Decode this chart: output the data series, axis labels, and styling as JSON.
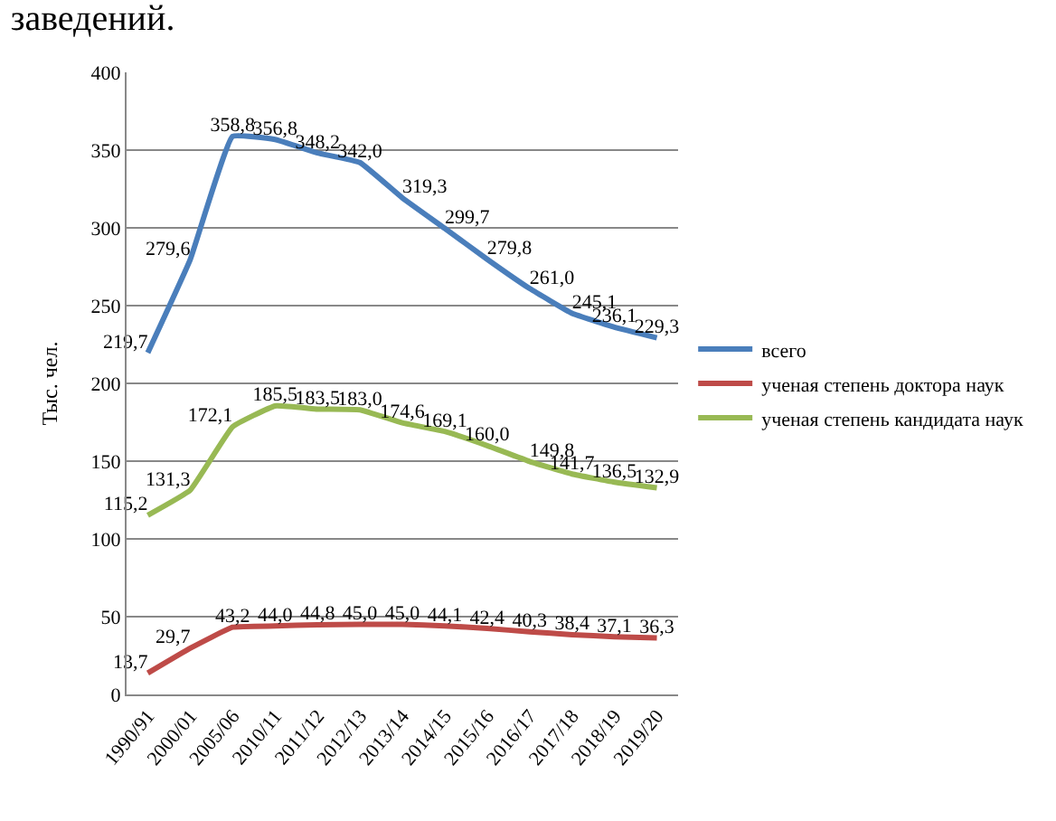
{
  "chart_data": {
    "type": "line",
    "title": "заведений.",
    "ylabel": "Тыс. чел.",
    "categories": [
      "1990/91",
      "2000/01",
      "2005/06",
      "2010/11",
      "2011/12",
      "2012/13",
      "2013/14",
      "2014/15",
      "2015/16",
      "2016/17",
      "2017/18",
      "2018/19",
      "2019/20"
    ],
    "series": [
      {
        "name": "всего",
        "color": "#4a7ebb",
        "values": [
          219.7,
          279.6,
          358.8,
          356.8,
          348.2,
          342.0,
          319.3,
          299.7,
          279.8,
          261.0,
          245.1,
          236.1,
          229.3
        ],
        "value_labels": [
          "219,7",
          "279,6",
          "358,8",
          "356,8",
          "348,2",
          "342,0",
          "319,3",
          "299,7",
          "279,8",
          "261,0",
          "245,1",
          "236,1",
          "229,3"
        ]
      },
      {
        "name": "ученая степень доктора наук",
        "color": "#be4b48",
        "values": [
          13.7,
          29.7,
          43.2,
          44.0,
          44.8,
          45.0,
          45.0,
          44.1,
          42.4,
          40.3,
          38.4,
          37.1,
          36.3
        ],
        "value_labels": [
          "13,7",
          "29,7",
          "43,2",
          "44,0",
          "44,8",
          "45,0",
          "45,0",
          "44,1",
          "42,4",
          "40,3",
          "38,4",
          "37,1",
          "36,3"
        ]
      },
      {
        "name": "ученая степень кандидата наук",
        "color": "#98b954",
        "values": [
          115.2,
          131.3,
          172.1,
          185.5,
          183.5,
          183.0,
          174.6,
          169.1,
          160.0,
          149.8,
          141.7,
          136.5,
          132.9
        ],
        "value_labels": [
          "115,2",
          "131,3",
          "172,1",
          "185,5",
          "183,5",
          "183,0",
          "174,6",
          "169,1",
          "160,0",
          "149,8",
          "141,7",
          "136,5",
          "132,9"
        ]
      }
    ],
    "ylim": [
      0,
      400
    ],
    "yticks": [
      0,
      50,
      100,
      150,
      200,
      250,
      300,
      350,
      400
    ],
    "grid": "y",
    "legend": "right",
    "marker": "none",
    "line_style": "solid"
  }
}
